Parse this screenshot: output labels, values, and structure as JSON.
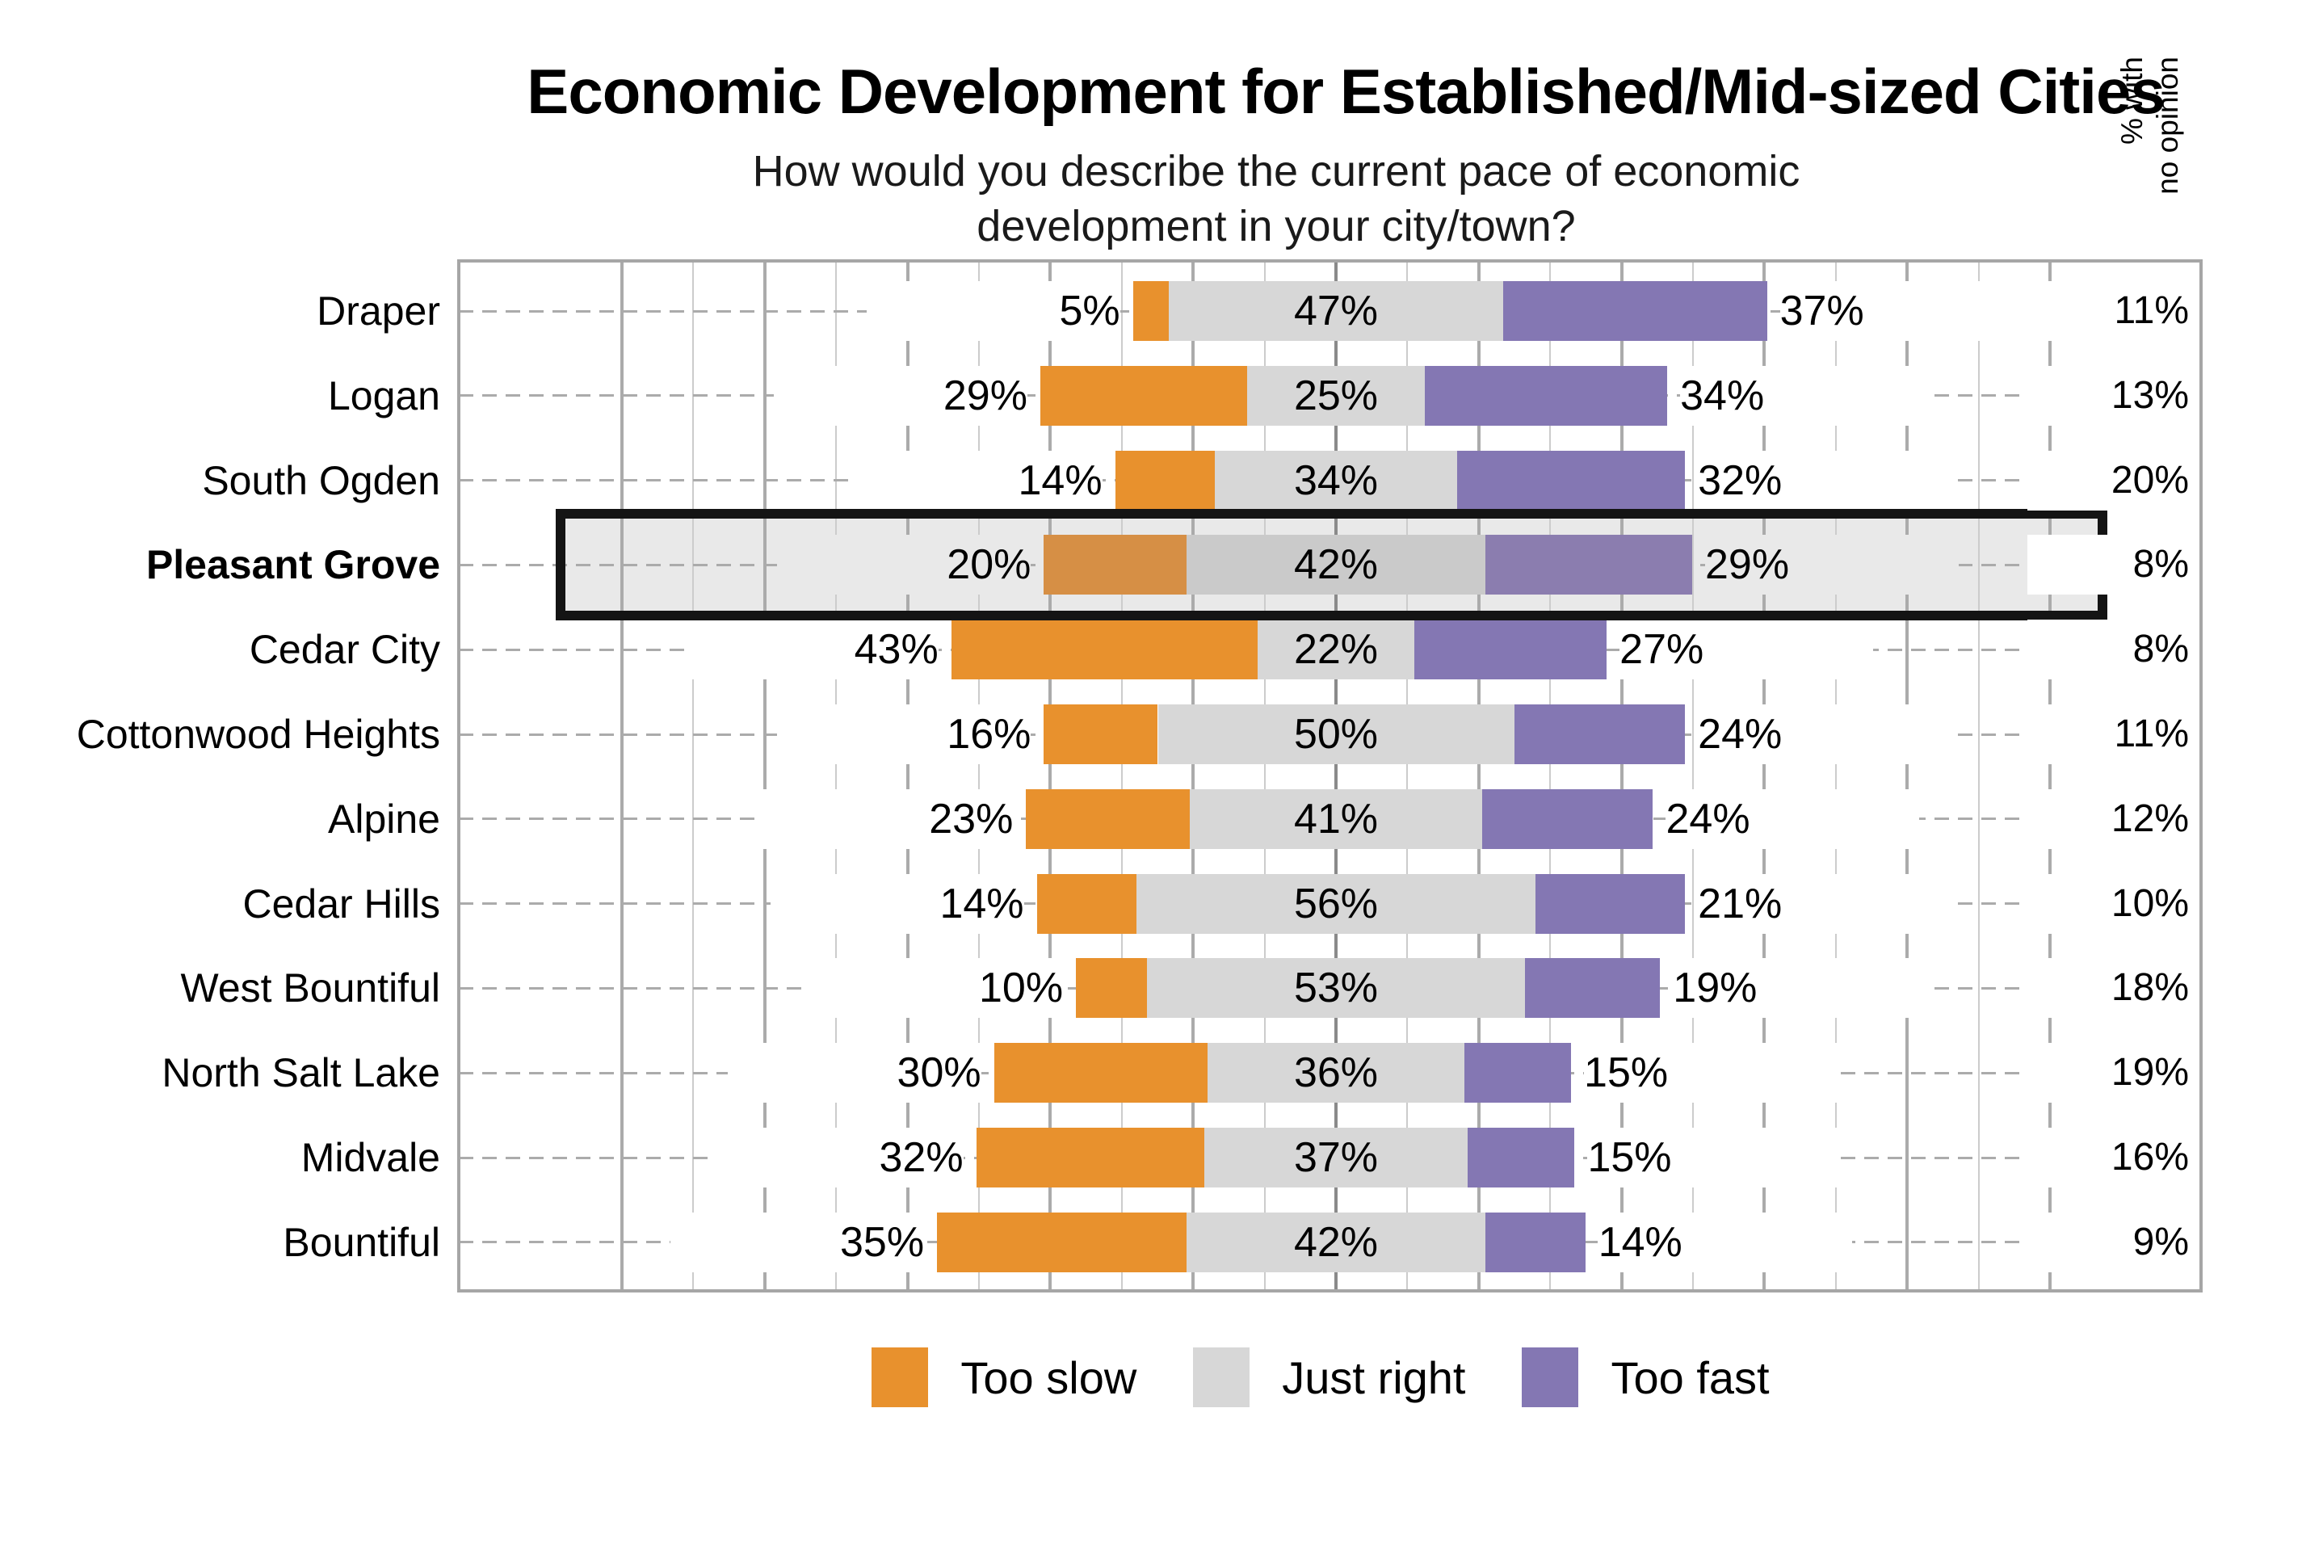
{
  "title": "Economic Development for Established/Mid-sized Cities",
  "subtitle_line1": "How would you describe the current pace of economic",
  "subtitle_line2": "development in your city/town?",
  "right_column_header": "% with\nno opinion",
  "legend": [
    {
      "label": "Too slow",
      "color": "#E8912D"
    },
    {
      "label": "Just right",
      "color": "#D7D7D7"
    },
    {
      "label": "Too fast",
      "color": "#8477B3"
    }
  ],
  "highlight_category": "Pleasant Grove",
  "chart_data": {
    "type": "bar",
    "variant": "horizontal-diverging-stacked",
    "categories": [
      "Draper",
      "Logan",
      "South Ogden",
      "Pleasant Grove",
      "Cedar City",
      "Cottonwood Heights",
      "Alpine",
      "Cedar Hills",
      "West Bountiful",
      "North Salt Lake",
      "Midvale",
      "Bountiful"
    ],
    "series": [
      {
        "name": "Too slow",
        "color": "#E8912D",
        "muted_color": "#D68F45",
        "values": [
          5,
          29,
          14,
          20,
          43,
          16,
          23,
          14,
          10,
          30,
          32,
          35
        ]
      },
      {
        "name": "Just right",
        "color": "#D7D7D7",
        "muted_color": "#CACACA",
        "values": [
          47,
          25,
          34,
          42,
          22,
          50,
          41,
          56,
          53,
          36,
          37,
          42
        ]
      },
      {
        "name": "Too fast",
        "color": "#8477B3",
        "muted_color": "#8B7DAF",
        "values": [
          37,
          34,
          32,
          29,
          27,
          24,
          24,
          21,
          19,
          15,
          15,
          14
        ]
      }
    ],
    "no_opinion": {
      "label": "% with no opinion",
      "values": [
        11,
        13,
        20,
        8,
        8,
        11,
        12,
        10,
        18,
        19,
        16,
        9
      ]
    },
    "value_suffix": "%",
    "axis": {
      "center_pct": 0,
      "grid_step_pct": 10,
      "grid_extent_pct": 100,
      "grid": true
    },
    "legend_position": "bottom"
  }
}
